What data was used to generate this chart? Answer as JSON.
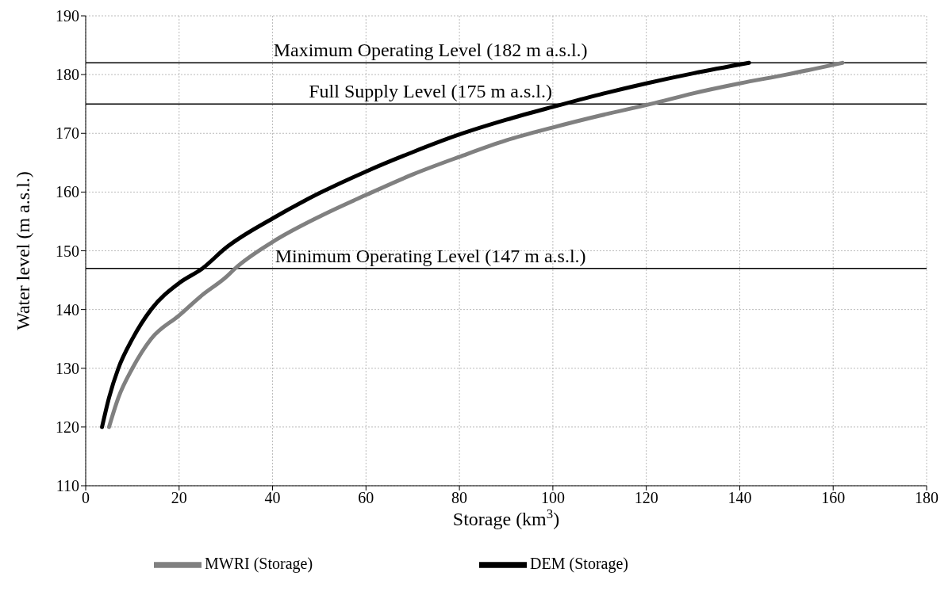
{
  "chart_data": {
    "type": "line",
    "xlabel": "Storage (km$^{3}$)",
    "ylabel": "Water level  (m a.s.l.)",
    "xlim": [
      0,
      180
    ],
    "xticks": [
      0,
      20,
      40,
      60,
      80,
      100,
      120,
      140,
      160,
      180
    ],
    "ylim": [
      110,
      190
    ],
    "yticks": [
      110,
      120,
      130,
      140,
      150,
      160,
      170,
      180,
      190
    ],
    "grid": true,
    "legend": "bottom",
    "marker": "none",
    "line_style": "solid",
    "series": [
      {
        "name": "MWRI (Storage)",
        "color": "#808080",
        "x": [
          5,
          7,
          10,
          14,
          20,
          25,
          30,
          32,
          40,
          50,
          60,
          70,
          80,
          90,
          100,
          110,
          121,
          130,
          140,
          150,
          162
        ],
        "values": [
          120,
          125,
          130,
          135,
          139,
          142.5,
          145.5,
          147,
          151.5,
          155.8,
          159.5,
          163,
          166,
          168.8,
          171,
          173,
          175,
          176.8,
          178.5,
          180,
          182
        ]
      },
      {
        "name": "DEM (Storage)",
        "color": "#000000",
        "x": [
          3.5,
          5,
          7,
          10,
          14,
          20,
          25,
          30,
          40,
          50,
          60,
          70,
          80,
          90,
          100,
          110,
          120,
          130,
          142
        ],
        "values": [
          120,
          125,
          130,
          135,
          140,
          144.5,
          147,
          150.5,
          155.5,
          159.8,
          163.5,
          166.8,
          169.8,
          172.3,
          174.5,
          176.6,
          178.5,
          180.2,
          182
        ]
      }
    ],
    "ref_lines": [
      {
        "axis": "y",
        "value": 182,
        "label": "Maximum Operating Level (182 m a.s.l.)",
        "color": "#000000"
      },
      {
        "axis": "y",
        "value": 175,
        "label": "Full Supply Level (175 m a.s.l.)",
        "color": "#000000"
      },
      {
        "axis": "y",
        "value": 147,
        "label": "Minimum Operating Level (147 m a.s.l.)",
        "color": "#000000"
      }
    ]
  }
}
